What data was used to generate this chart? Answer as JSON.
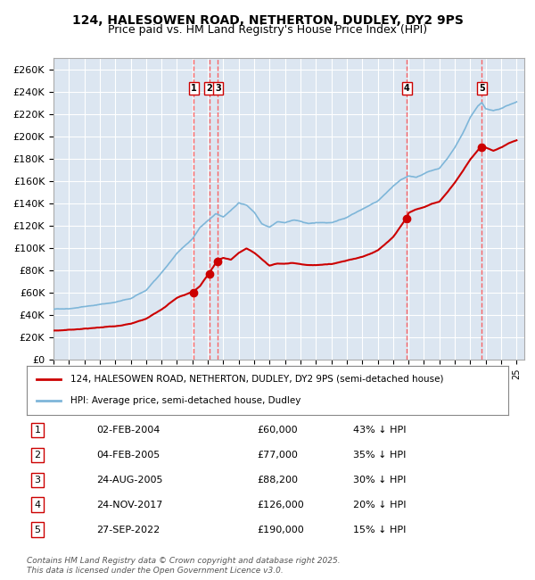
{
  "title_line1": "124, HALESOWEN ROAD, NETHERTON, DUDLEY, DY2 9PS",
  "title_line2": "Price paid vs. HM Land Registry's House Price Index (HPI)",
  "xlabel": "",
  "ylabel": "",
  "ylim": [
    0,
    270000
  ],
  "yticks": [
    0,
    20000,
    40000,
    60000,
    80000,
    100000,
    120000,
    140000,
    160000,
    180000,
    200000,
    220000,
    240000,
    260000
  ],
  "background_color": "#ffffff",
  "plot_bg_color": "#dce6f1",
  "grid_color": "#ffffff",
  "hpi_color": "#7eb6d9",
  "price_color": "#cc0000",
  "sale_marker_color": "#cc0000",
  "sale_vline_color": "#ff4444",
  "legend_label_price": "124, HALESOWEN ROAD, NETHERTON, DUDLEY, DY2 9PS (semi-detached house)",
  "legend_label_hpi": "HPI: Average price, semi-detached house, Dudley",
  "transactions": [
    {
      "id": 1,
      "date": "02-FEB-2004",
      "date_num": 2004.09,
      "price": 60000,
      "pct": "43% ↓ HPI"
    },
    {
      "id": 2,
      "date": "04-FEB-2005",
      "date_num": 2005.09,
      "price": 77000,
      "pct": "35% ↓ HPI"
    },
    {
      "id": 3,
      "date": "24-AUG-2005",
      "date_num": 2005.65,
      "price": 88200,
      "pct": "30% ↓ HPI"
    },
    {
      "id": 4,
      "date": "24-NOV-2017",
      "date_num": 2017.9,
      "price": 126000,
      "pct": "20% ↓ HPI"
    },
    {
      "id": 5,
      "date": "27-SEP-2022",
      "date_num": 2022.74,
      "price": 190000,
      "pct": "15% ↓ HPI"
    }
  ],
  "footer": "Contains HM Land Registry data © Crown copyright and database right 2025.\nThis data is licensed under the Open Government Licence v3.0.",
  "title_fontsize": 10,
  "subtitle_fontsize": 9,
  "tick_fontsize": 8
}
